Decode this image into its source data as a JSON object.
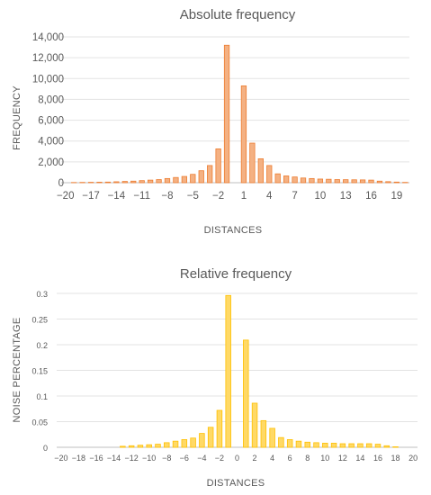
{
  "chart_data": [
    {
      "type": "bar",
      "title": "Absolute frequency",
      "xlabel": "DISTANCES",
      "ylabel": "FREQUENCY",
      "ylim": [
        0,
        14000
      ],
      "yticks": [
        0,
        2000,
        4000,
        6000,
        8000,
        10000,
        12000,
        14000
      ],
      "ytick_labels": [
        "0",
        "2,000",
        "4,000",
        "6,000",
        "8,000",
        "10,000",
        "12,000",
        "14,000"
      ],
      "xtick_labels": [
        "−20",
        "−17",
        "−14",
        "−11",
        "−8",
        "−5",
        "−2",
        "1",
        "4",
        "7",
        "10",
        "13",
        "16",
        "19"
      ],
      "xtick_values": [
        -20,
        -17,
        -14,
        -11,
        -8,
        -5,
        -2,
        1,
        4,
        7,
        10,
        13,
        16,
        19
      ],
      "categories": [
        -20,
        -19,
        -18,
        -17,
        -16,
        -15,
        -14,
        -13,
        -12,
        -11,
        -10,
        -9,
        -8,
        -7,
        -6,
        -5,
        -4,
        -3,
        -2,
        -1,
        0,
        1,
        2,
        3,
        4,
        5,
        6,
        7,
        8,
        9,
        10,
        11,
        12,
        13,
        14,
        15,
        16,
        17,
        18,
        19,
        20
      ],
      "values": [
        0,
        20,
        30,
        40,
        50,
        60,
        90,
        120,
        150,
        200,
        250,
        300,
        400,
        500,
        600,
        800,
        1150,
        1650,
        3250,
        13200,
        0,
        9300,
        3800,
        2300,
        1650,
        850,
        650,
        550,
        450,
        400,
        350,
        330,
        300,
        290,
        280,
        270,
        250,
        150,
        100,
        60,
        30
      ],
      "grid": true,
      "color": "#f4b183",
      "edge_color": "#ed7d31"
    },
    {
      "type": "bar",
      "title": "Relative frequency",
      "xlabel": "DISTANCES",
      "ylabel": "NOISE PERCENTAGE",
      "ylim": [
        0,
        0.3
      ],
      "yticks": [
        0,
        0.05,
        0.1,
        0.15,
        0.2,
        0.25,
        0.3
      ],
      "ytick_labels": [
        "0",
        "0.05",
        "0.1",
        "0.15",
        "0.2",
        "0.25",
        "0.3"
      ],
      "xtick_labels": [
        "−20",
        "−18",
        "−16",
        "−14",
        "−12",
        "−10",
        "−8",
        "−6",
        "−4",
        "−2",
        "0",
        "2",
        "4",
        "6",
        "8",
        "10",
        "12",
        "14",
        "16",
        "18",
        "20"
      ],
      "xtick_values": [
        -20,
        -18,
        -16,
        -14,
        -12,
        -10,
        -8,
        -6,
        -4,
        -2,
        0,
        2,
        4,
        6,
        8,
        10,
        12,
        14,
        16,
        18,
        20
      ],
      "categories": [
        -20,
        -19,
        -18,
        -17,
        -16,
        -15,
        -14,
        -13,
        -12,
        -11,
        -10,
        -9,
        -8,
        -7,
        -6,
        -5,
        -4,
        -3,
        -2,
        -1,
        0,
        1,
        2,
        3,
        4,
        5,
        6,
        7,
        8,
        9,
        10,
        11,
        12,
        13,
        14,
        15,
        16,
        17,
        18,
        19,
        20
      ],
      "values": [
        0,
        0,
        0,
        0,
        0,
        0,
        0,
        0.002,
        0.003,
        0.004,
        0.005,
        0.006,
        0.009,
        0.012,
        0.015,
        0.018,
        0.027,
        0.039,
        0.072,
        0.296,
        0,
        0.209,
        0.086,
        0.052,
        0.037,
        0.019,
        0.015,
        0.012,
        0.01,
        0.009,
        0.008,
        0.008,
        0.007,
        0.007,
        0.007,
        0.007,
        0.006,
        0.003,
        0.001,
        0,
        0
      ],
      "grid": true,
      "color": "#ffd966",
      "edge_color": "#ffc000"
    }
  ]
}
